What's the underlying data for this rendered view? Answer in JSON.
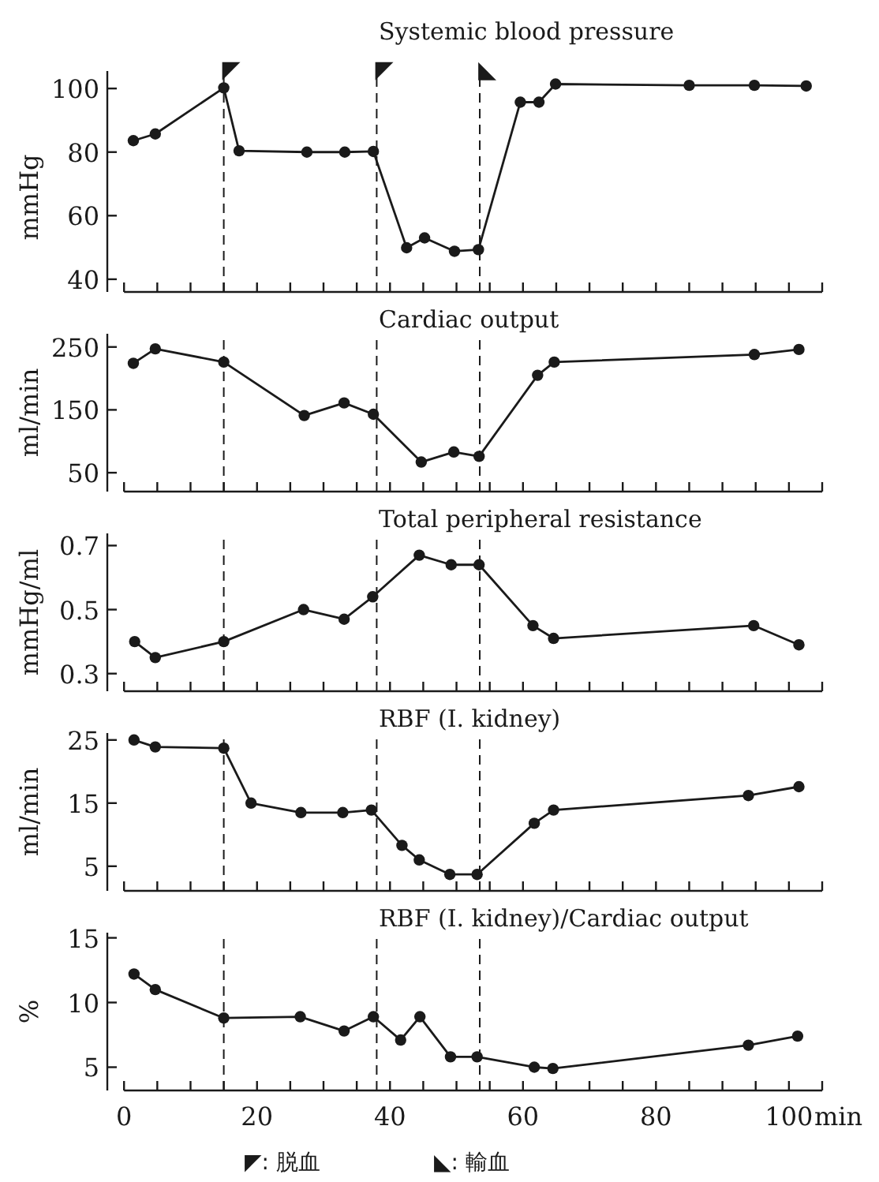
{
  "chart_data": [
    {
      "type": "line",
      "title": "Systemic blood pressure",
      "ylabel": "mmHg",
      "xlim": [
        0,
        105
      ],
      "ylim": [
        36,
        105.5
      ],
      "yticks": [
        40,
        60,
        80,
        100
      ],
      "tick_labels": "y",
      "marker": "circle",
      "line_style": "solid",
      "grid": false,
      "xticks": [
        0,
        5,
        10,
        15,
        20,
        25,
        30,
        35,
        40,
        45,
        50,
        55,
        60,
        65,
        70,
        75,
        80,
        85,
        90,
        95,
        100,
        105
      ],
      "x": [
        1.4,
        4.7,
        15,
        17.3,
        27.5,
        33.2,
        37.5,
        42.5,
        45.2,
        49.7,
        53.3,
        59.6,
        62.4,
        64.9,
        85,
        94.8,
        102.6
      ],
      "series": [
        {
          "color": "#1a1a1a",
          "values": [
            83.6,
            85.7,
            100.2,
            80.4,
            80,
            80,
            80.2,
            49.9,
            53,
            48.8,
            49.3,
            95.7,
            95.7,
            101.4,
            101,
            101,
            100.8
          ]
        }
      ],
      "ref_lines": [
        {
          "axis": "x",
          "value": 15,
          "label": "◤",
          "line_style": "dashed",
          "color": "#1a1a1a"
        },
        {
          "axis": "x",
          "value": 38,
          "label": "◤",
          "line_style": "dashed",
          "color": "#1a1a1a"
        },
        {
          "axis": "x",
          "value": 53.5,
          "label": "◣",
          "line_style": "dashed",
          "color": "#1a1a1a"
        }
      ]
    },
    {
      "type": "line",
      "title": "Cardiac output",
      "ylabel": "ml/min",
      "xlim": [
        0,
        105
      ],
      "ylim": [
        20,
        271
      ],
      "yticks": [
        50,
        150,
        250
      ],
      "tick_labels": "y",
      "marker": "circle",
      "line_style": "solid",
      "grid": false,
      "xticks": [
        0,
        5,
        10,
        15,
        20,
        25,
        30,
        35,
        40,
        45,
        50,
        55,
        60,
        65,
        70,
        75,
        80,
        85,
        90,
        95,
        100,
        105
      ],
      "x": [
        1.4,
        4.7,
        15,
        27.1,
        33.1,
        37.5,
        44.7,
        49.6,
        53.4,
        62.2,
        64.7,
        94.8,
        101.5
      ],
      "series": [
        {
          "color": "#1a1a1a",
          "values": [
            224,
            247,
            226,
            141,
            161,
            143,
            67,
            83,
            76,
            205,
            226,
            238,
            246
          ]
        }
      ],
      "ref_lines": [
        {
          "axis": "x",
          "value": 15,
          "line_style": "dashed",
          "color": "#1a1a1a"
        },
        {
          "axis": "x",
          "value": 38,
          "line_style": "dashed",
          "color": "#1a1a1a"
        },
        {
          "axis": "x",
          "value": 53.5,
          "line_style": "dashed",
          "color": "#1a1a1a"
        }
      ]
    },
    {
      "type": "line",
      "title": "Total peripheral resistance",
      "ylabel": "mmHg/ml",
      "xlim": [
        0,
        105
      ],
      "ylim": [
        0.245,
        0.738
      ],
      "yticks": [
        0.3,
        0.5,
        0.7
      ],
      "tick_labels": "y",
      "marker": "circle",
      "line_style": "solid",
      "grid": false,
      "xticks": [
        0,
        5,
        10,
        15,
        20,
        25,
        30,
        35,
        40,
        45,
        50,
        55,
        60,
        65,
        70,
        75,
        80,
        85,
        90,
        95,
        100,
        105
      ],
      "x": [
        1.6,
        4.7,
        15,
        27,
        33.1,
        37.4,
        44.4,
        49.2,
        53.4,
        61.5,
        64.6,
        94.7,
        101.5
      ],
      "series": [
        {
          "color": "#1a1a1a",
          "values": [
            0.4,
            0.35,
            0.4,
            0.5,
            0.47,
            0.54,
            0.67,
            0.64,
            0.64,
            0.45,
            0.41,
            0.45,
            0.39
          ]
        }
      ],
      "ref_lines": [
        {
          "axis": "x",
          "value": 15,
          "line_style": "dashed",
          "color": "#1a1a1a"
        },
        {
          "axis": "x",
          "value": 38,
          "line_style": "dashed",
          "color": "#1a1a1a"
        },
        {
          "axis": "x",
          "value": 53.5,
          "line_style": "dashed",
          "color": "#1a1a1a"
        }
      ]
    },
    {
      "type": "line",
      "title": "RBF (I. kidney)",
      "ylabel": "ml/min",
      "xlim": [
        0,
        105
      ],
      "ylim": [
        1.1,
        26.1
      ],
      "yticks": [
        5,
        15,
        25
      ],
      "tick_labels": "y",
      "marker": "circle",
      "line_style": "solid",
      "grid": false,
      "xticks": [
        0,
        5,
        10,
        15,
        20,
        25,
        30,
        35,
        40,
        45,
        50,
        55,
        60,
        65,
        70,
        75,
        80,
        85,
        90,
        95,
        100,
        105
      ],
      "x": [
        1.5,
        4.7,
        15,
        19.1,
        26.6,
        32.9,
        37.2,
        41.8,
        44.4,
        49,
        53.1,
        61.7,
        64.6,
        93.9,
        101.5
      ],
      "series": [
        {
          "color": "#1a1a1a",
          "values": [
            25,
            23.9,
            23.7,
            15,
            13.5,
            13.5,
            13.9,
            8.3,
            6,
            3.7,
            3.7,
            11.8,
            13.9,
            16.2,
            17.6
          ]
        }
      ],
      "ref_lines": [
        {
          "axis": "x",
          "value": 15,
          "line_style": "dashed",
          "color": "#1a1a1a"
        },
        {
          "axis": "x",
          "value": 38,
          "line_style": "dashed",
          "color": "#1a1a1a"
        },
        {
          "axis": "x",
          "value": 53.5,
          "line_style": "dashed",
          "color": "#1a1a1a"
        }
      ]
    },
    {
      "type": "line",
      "title": "RBF (I. kidney)/Cardiac output",
      "ylabel": "%",
      "xlabel": "min",
      "xlim": [
        0,
        105
      ],
      "ylim": [
        3.2,
        15.4
      ],
      "yticks": [
        5,
        10,
        15
      ],
      "marker": "circle",
      "line_style": "solid",
      "grid": false,
      "xticks": [
        0,
        {
          "value": 5,
          "label": null
        },
        {
          "value": 10,
          "label": null
        },
        {
          "value": 15,
          "label": null
        },
        20,
        {
          "value": 25,
          "label": null
        },
        {
          "value": 30,
          "label": null
        },
        {
          "value": 35,
          "label": null
        },
        40,
        {
          "value": 45,
          "label": null
        },
        {
          "value": 50,
          "label": null
        },
        {
          "value": 55,
          "label": null
        },
        60,
        {
          "value": 65,
          "label": null
        },
        {
          "value": 70,
          "label": null
        },
        {
          "value": 75,
          "label": null
        },
        80,
        {
          "value": 85,
          "label": null
        },
        {
          "value": 90,
          "label": null
        },
        {
          "value": 95,
          "label": null
        },
        100,
        {
          "value": 105,
          "label": null
        }
      ],
      "x": [
        1.5,
        4.7,
        15,
        26.5,
        33.1,
        37.5,
        41.6,
        44.5,
        49.1,
        53.1,
        61.7,
        64.5,
        93.9,
        101.3
      ],
      "series": [
        {
          "color": "#1a1a1a",
          "values": [
            12.2,
            11,
            8.8,
            8.9,
            7.8,
            8.9,
            7.1,
            8.9,
            5.8,
            5.8,
            5,
            4.9,
            6.7,
            7.4
          ]
        }
      ],
      "ref_lines": [
        {
          "axis": "x",
          "value": 15,
          "line_style": "dashed",
          "color": "#1a1a1a"
        },
        {
          "axis": "x",
          "value": 38,
          "line_style": "dashed",
          "color": "#1a1a1a"
        },
        {
          "axis": "x",
          "value": 53.5,
          "line_style": "dashed",
          "color": "#1a1a1a"
        }
      ],
      "annotations": [
        "◤: 脱血",
        "◣: 輸血"
      ]
    }
  ]
}
